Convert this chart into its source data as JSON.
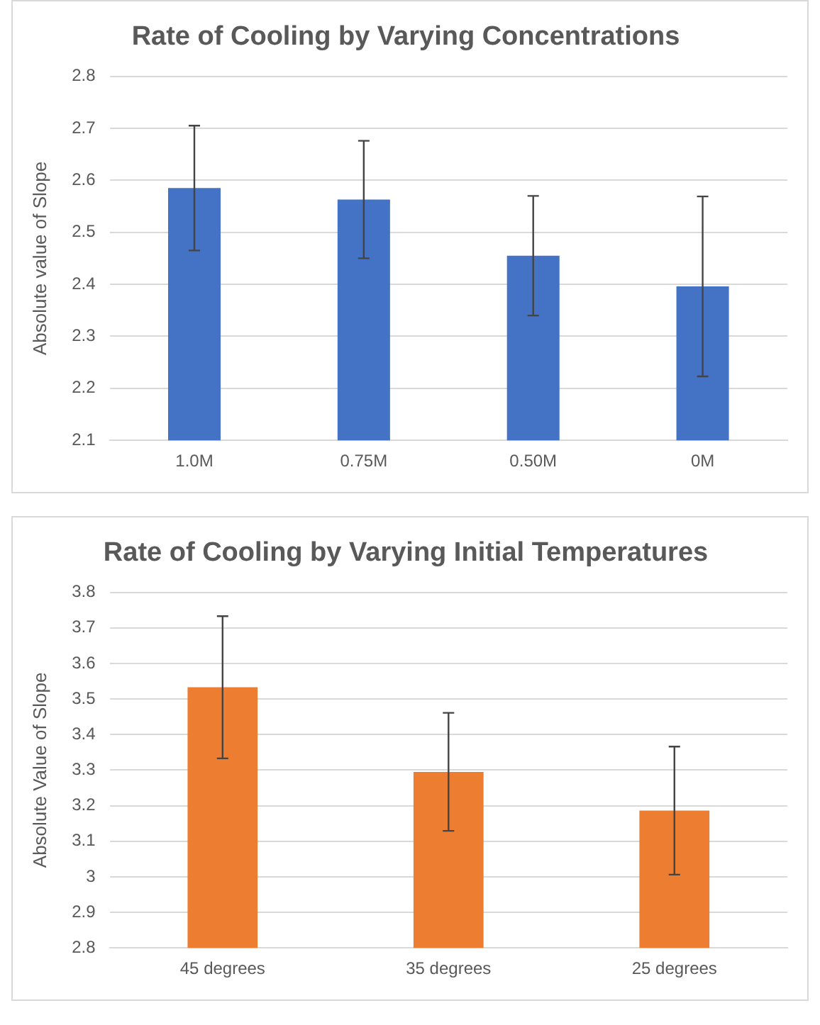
{
  "chart_data": [
    {
      "type": "bar",
      "title": "Rate of Cooling by Varying Concentrations",
      "ylabel": "Absolute value of Slope",
      "categories": [
        "1.0M",
        "0.75M",
        "0.50M",
        "0M"
      ],
      "series": [
        {
          "color": "#4472c4",
          "values": [
            2.585,
            2.563,
            2.455,
            2.396
          ],
          "errors": [
            0.12,
            0.113,
            0.115,
            0.173
          ]
        }
      ],
      "ylim": [
        2.1,
        2.8
      ],
      "yticks": [
        2.1,
        2.2,
        2.3,
        2.4,
        2.5,
        2.6,
        2.7,
        2.8
      ],
      "grid": "y",
      "legend": false
    },
    {
      "type": "bar",
      "title": "Rate of Cooling by Varying Initial Temperatures",
      "ylabel": "Absolute Value of Slope",
      "categories": [
        "45 degrees",
        "35 degrees",
        "25 degrees"
      ],
      "series": [
        {
          "color": "#ed7d31",
          "values": [
            3.533,
            3.295,
            3.186
          ],
          "errors": [
            0.2,
            0.166,
            0.18
          ]
        }
      ],
      "ylim": [
        2.8,
        3.8
      ],
      "yticks": [
        2.8,
        2.9,
        3,
        3.1,
        3.2,
        3.3,
        3.4,
        3.5,
        3.6,
        3.7,
        3.8
      ],
      "grid": "y",
      "legend": false
    }
  ]
}
